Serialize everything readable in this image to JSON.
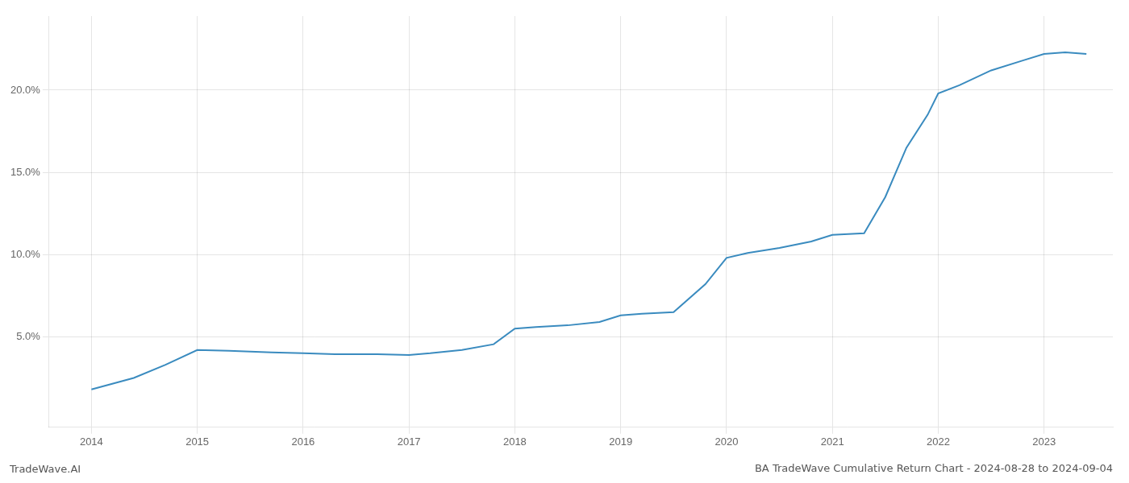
{
  "chart_data": {
    "type": "line",
    "title": "BA TradeWave Cumulative Return Chart - 2024-08-28 to 2024-09-04",
    "annotations": [
      "TradeWave.AI"
    ],
    "x": [
      2014.0,
      2014.4,
      2014.7,
      2015.0,
      2015.3,
      2015.7,
      2016.0,
      2016.3,
      2016.7,
      2017.0,
      2017.2,
      2017.5,
      2017.8,
      2018.0,
      2018.2,
      2018.5,
      2018.8,
      2019.0,
      2019.2,
      2019.5,
      2019.8,
      2020.0,
      2020.2,
      2020.5,
      2020.8,
      2021.0,
      2021.15,
      2021.3,
      2021.5,
      2021.7,
      2021.9,
      2022.0,
      2022.2,
      2022.5,
      2022.8,
      2023.0,
      2023.2,
      2023.4
    ],
    "values": [
      1.8,
      2.5,
      3.3,
      4.2,
      4.15,
      4.05,
      4.0,
      3.95,
      3.95,
      3.9,
      4.0,
      4.2,
      4.55,
      5.5,
      5.6,
      5.7,
      5.9,
      6.3,
      6.4,
      6.5,
      8.2,
      9.8,
      10.1,
      10.4,
      10.8,
      11.2,
      11.25,
      11.3,
      13.5,
      16.5,
      18.5,
      19.8,
      20.3,
      21.2,
      21.8,
      22.2,
      22.3,
      22.2
    ],
    "color": "#3a8bbf",
    "xlim": [
      2013.6,
      2023.65
    ],
    "xticks": [
      2014,
      2015,
      2016,
      2017,
      2018,
      2019,
      2020,
      2021,
      2022,
      2023
    ],
    "ylim": [
      -0.5,
      24.5
    ],
    "yticks": [
      {
        "value": 5.0,
        "label": "5.0%"
      },
      {
        "value": 10.0,
        "label": "10.0%"
      },
      {
        "value": 15.0,
        "label": "15.0%"
      },
      {
        "value": 20.0,
        "label": "20.0%"
      }
    ],
    "grid": true
  }
}
